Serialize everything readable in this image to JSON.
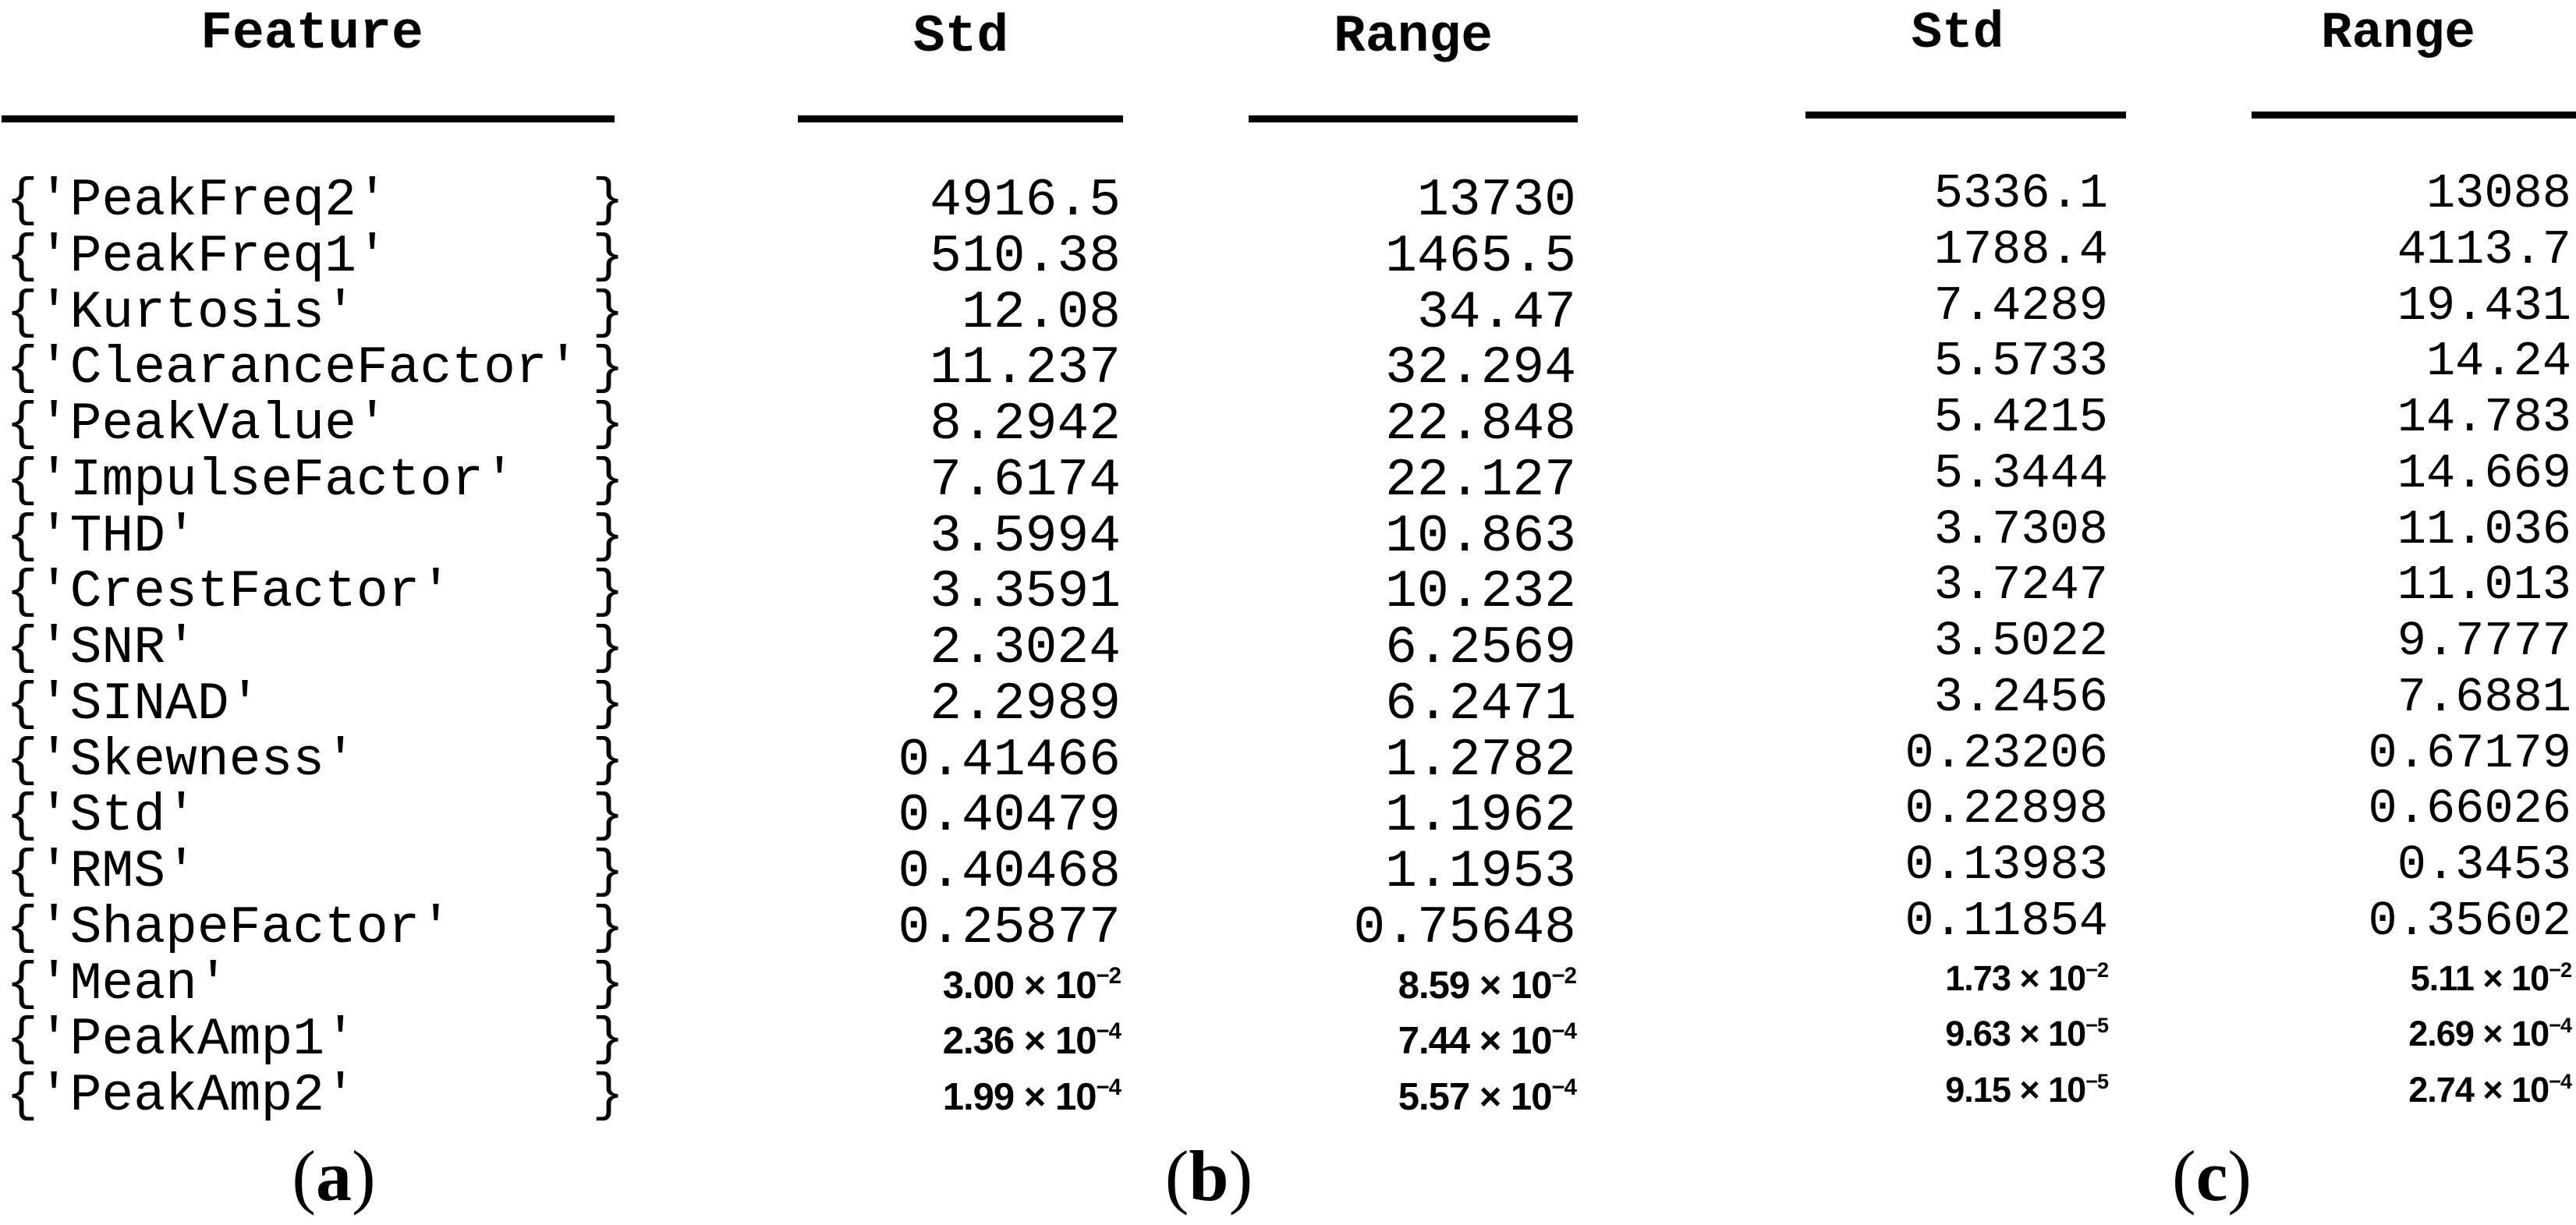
{
  "figure": {
    "feature_header": "Feature",
    "sections": [
      {
        "id": "b",
        "std_header": "Std",
        "range_header": "Range"
      },
      {
        "id": "c",
        "std_header": "Std",
        "range_header": "Range"
      }
    ],
    "captions": [
      {
        "pre": "(",
        "letter": "a",
        "post": ")"
      },
      {
        "pre": "(",
        "letter": "b",
        "post": ")"
      },
      {
        "pre": "(",
        "letter": "c",
        "post": ")"
      }
    ],
    "rows": [
      {
        "feature": "{'PeakFreq2'",
        "brace": "}",
        "b_std": {
          "base": "4916.5",
          "sup": ""
        },
        "b_range": {
          "base": "13730",
          "sup": ""
        },
        "c_std": {
          "base": "5336.1",
          "sup": ""
        },
        "c_range": {
          "base": "13088",
          "sup": ""
        }
      },
      {
        "feature": "{'PeakFreq1'",
        "brace": "}",
        "b_std": {
          "base": "510.38",
          "sup": ""
        },
        "b_range": {
          "base": "1465.5",
          "sup": ""
        },
        "c_std": {
          "base": "1788.4",
          "sup": ""
        },
        "c_range": {
          "base": "4113.7",
          "sup": ""
        }
      },
      {
        "feature": "{'Kurtosis'",
        "brace": "}",
        "b_std": {
          "base": "12.08",
          "sup": ""
        },
        "b_range": {
          "base": "34.47",
          "sup": ""
        },
        "c_std": {
          "base": "7.4289",
          "sup": ""
        },
        "c_range": {
          "base": "19.431",
          "sup": ""
        }
      },
      {
        "feature": "{'ClearanceFactor'",
        "brace": "}",
        "b_std": {
          "base": "11.237",
          "sup": ""
        },
        "b_range": {
          "base": "32.294",
          "sup": ""
        },
        "c_std": {
          "base": "5.5733",
          "sup": ""
        },
        "c_range": {
          "base": "14.24",
          "sup": ""
        }
      },
      {
        "feature": "{'PeakValue'",
        "brace": "}",
        "b_std": {
          "base": "8.2942",
          "sup": ""
        },
        "b_range": {
          "base": "22.848",
          "sup": ""
        },
        "c_std": {
          "base": "5.4215",
          "sup": ""
        },
        "c_range": {
          "base": "14.783",
          "sup": ""
        }
      },
      {
        "feature": "{'ImpulseFactor'",
        "brace": "}",
        "b_std": {
          "base": "7.6174",
          "sup": ""
        },
        "b_range": {
          "base": "22.127",
          "sup": ""
        },
        "c_std": {
          "base": "5.3444",
          "sup": ""
        },
        "c_range": {
          "base": "14.669",
          "sup": ""
        }
      },
      {
        "feature": "{'THD'",
        "brace": "}",
        "b_std": {
          "base": "3.5994",
          "sup": ""
        },
        "b_range": {
          "base": "10.863",
          "sup": ""
        },
        "c_std": {
          "base": "3.7308",
          "sup": ""
        },
        "c_range": {
          "base": "11.036",
          "sup": ""
        }
      },
      {
        "feature": "{'CrestFactor'",
        "brace": "}",
        "b_std": {
          "base": "3.3591",
          "sup": ""
        },
        "b_range": {
          "base": "10.232",
          "sup": ""
        },
        "c_std": {
          "base": "3.7247",
          "sup": ""
        },
        "c_range": {
          "base": "11.013",
          "sup": ""
        }
      },
      {
        "feature": "{'SNR'",
        "brace": "}",
        "b_std": {
          "base": "2.3024",
          "sup": ""
        },
        "b_range": {
          "base": "6.2569",
          "sup": ""
        },
        "c_std": {
          "base": "3.5022",
          "sup": ""
        },
        "c_range": {
          "base": "9.7777",
          "sup": ""
        }
      },
      {
        "feature": "{'SINAD'",
        "brace": "}",
        "b_std": {
          "base": "2.2989",
          "sup": ""
        },
        "b_range": {
          "base": "6.2471",
          "sup": ""
        },
        "c_std": {
          "base": "3.2456",
          "sup": ""
        },
        "c_range": {
          "base": "7.6881",
          "sup": ""
        }
      },
      {
        "feature": "{'Skewness'",
        "brace": "}",
        "b_std": {
          "base": "0.41466",
          "sup": ""
        },
        "b_range": {
          "base": "1.2782",
          "sup": ""
        },
        "c_std": {
          "base": "0.23206",
          "sup": ""
        },
        "c_range": {
          "base": "0.67179",
          "sup": ""
        }
      },
      {
        "feature": "{'Std'",
        "brace": "}",
        "b_std": {
          "base": "0.40479",
          "sup": ""
        },
        "b_range": {
          "base": "1.1962",
          "sup": ""
        },
        "c_std": {
          "base": "0.22898",
          "sup": ""
        },
        "c_range": {
          "base": "0.66026",
          "sup": ""
        }
      },
      {
        "feature": "{'RMS'",
        "brace": "}",
        "b_std": {
          "base": "0.40468",
          "sup": ""
        },
        "b_range": {
          "base": "1.1953",
          "sup": ""
        },
        "c_std": {
          "base": "0.13983",
          "sup": ""
        },
        "c_range": {
          "base": "0.3453",
          "sup": ""
        }
      },
      {
        "feature": "{'ShapeFactor'",
        "brace": "}",
        "b_std": {
          "base": "0.25877",
          "sup": ""
        },
        "b_range": {
          "base": "0.75648",
          "sup": ""
        },
        "c_std": {
          "base": "0.11854",
          "sup": ""
        },
        "c_range": {
          "base": "0.35602",
          "sup": ""
        }
      },
      {
        "feature": "{'Mean'",
        "brace": "}",
        "b_std": {
          "base": "3.00 × 10",
          "sup": "−2"
        },
        "b_range": {
          "base": "8.59 × 10",
          "sup": "−2"
        },
        "c_std": {
          "base": "1.73 × 10",
          "sup": "−2"
        },
        "c_range": {
          "base": "5.11 × 10",
          "sup": "−2"
        }
      },
      {
        "feature": "{'PeakAmp1'",
        "brace": "}",
        "b_std": {
          "base": "2.36 × 10",
          "sup": "−4"
        },
        "b_range": {
          "base": "7.44 × 10",
          "sup": "−4"
        },
        "c_std": {
          "base": "9.63 × 10",
          "sup": "−5"
        },
        "c_range": {
          "base": "2.69 × 10",
          "sup": "−4"
        }
      },
      {
        "feature": "{'PeakAmp2'",
        "brace": "}",
        "b_std": {
          "base": "1.99 × 10",
          "sup": "−4"
        },
        "b_range": {
          "base": "5.57 × 10",
          "sup": "−4"
        },
        "c_std": {
          "base": "9.15 × 10",
          "sup": "−5"
        },
        "c_range": {
          "base": "2.74 × 10",
          "sup": "−4"
        }
      }
    ]
  }
}
